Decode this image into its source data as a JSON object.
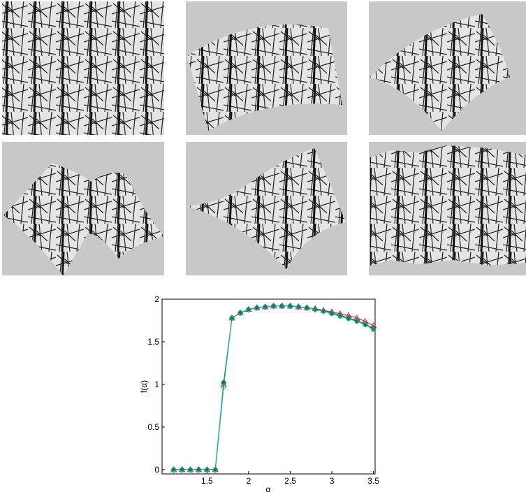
{
  "chart_data": {
    "type": "line",
    "x_label": "α",
    "y_label": "f(α)",
    "x": [
      1.1,
      1.2,
      1.3,
      1.4,
      1.5,
      1.6,
      1.7,
      1.8,
      1.9,
      2.0,
      2.1,
      2.2,
      2.3,
      2.4,
      2.5,
      2.6,
      2.7,
      2.8,
      2.9,
      3.0,
      3.1,
      3.2,
      3.3,
      3.4,
      3.5
    ],
    "series": [
      {
        "color": "#e0303a",
        "marker": "triangle",
        "values": [
          0,
          0,
          0,
          0,
          0,
          0,
          1.0,
          1.78,
          1.84,
          1.88,
          1.9,
          1.91,
          1.92,
          1.92,
          1.92,
          1.91,
          1.9,
          1.89,
          1.87,
          1.85,
          1.83,
          1.81,
          1.78,
          1.74,
          1.69
        ]
      },
      {
        "color": "#1a7a4a",
        "marker": "diamond",
        "values": [
          0,
          0,
          0,
          0,
          0,
          0,
          1.02,
          1.78,
          1.84,
          1.88,
          1.9,
          1.91,
          1.92,
          1.92,
          1.92,
          1.91,
          1.9,
          1.88,
          1.86,
          1.84,
          1.81,
          1.78,
          1.75,
          1.71,
          1.66
        ]
      },
      {
        "color": "#20b0c0",
        "marker": "circle",
        "values": [
          0,
          0,
          0,
          0,
          0,
          0,
          0.97,
          1.78,
          1.84,
          1.88,
          1.9,
          1.91,
          1.92,
          1.92,
          1.92,
          1.91,
          1.9,
          1.88,
          1.86,
          1.83,
          1.8,
          1.77,
          1.74,
          1.7,
          1.64
        ]
      }
    ],
    "xlim": [
      0.96,
      3.52
    ],
    "ylim": [
      -0.05,
      2.0
    ],
    "xticks": [
      1.5,
      2,
      2.5,
      3,
      3.5
    ],
    "yticks": [
      0,
      0.5,
      1,
      1.5,
      2
    ]
  }
}
